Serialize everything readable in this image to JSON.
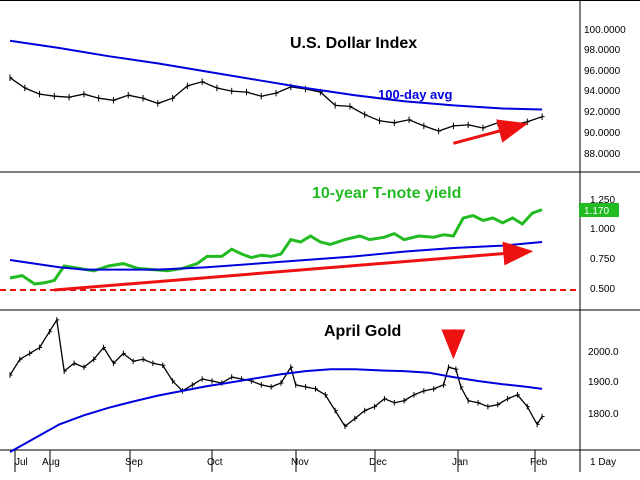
{
  "colors": {
    "price": "#000000",
    "avg": "#0000dd",
    "trend": "#ee1111",
    "yield": "#22bb22",
    "grid": "#000000"
  },
  "x_axis": {
    "months": [
      "Jul",
      "Aug",
      "Sep",
      "Oct",
      "Nov",
      "Dec",
      "Jan",
      "Feb"
    ],
    "period_label": "1 Day"
  },
  "chart_data": [
    {
      "type": "line",
      "title": "U.S. Dollar Index",
      "avg_label": "100-day avg",
      "y_ticks": [
        "100.0000",
        "98.0000",
        "96.0000",
        "94.0000",
        "92.0000",
        "90.0000",
        "88.0000"
      ],
      "ylim": [
        86.0,
        101.8
      ],
      "x_range": [
        0,
        218
      ],
      "series": [
        {
          "style": "ohlc",
          "points": [
            [
              0,
              95.0
            ],
            [
              6,
              94.0
            ],
            [
              12,
              93.4
            ],
            [
              18,
              93.2
            ],
            [
              24,
              93.1
            ],
            [
              30,
              93.4
            ],
            [
              36,
              93.0
            ],
            [
              42,
              92.8
            ],
            [
              48,
              93.3
            ],
            [
              54,
              93.0
            ],
            [
              60,
              92.5
            ],
            [
              66,
              93.0
            ],
            [
              72,
              94.2
            ],
            [
              78,
              94.6
            ],
            [
              84,
              94.0
            ],
            [
              90,
              93.7
            ],
            [
              96,
              93.6
            ],
            [
              102,
              93.2
            ],
            [
              108,
              93.5
            ],
            [
              114,
              94.1
            ],
            [
              120,
              93.9
            ],
            [
              126,
              93.6
            ],
            [
              132,
              92.3
            ],
            [
              138,
              92.2
            ],
            [
              144,
              91.4
            ],
            [
              150,
              90.8
            ],
            [
              156,
              90.6
            ],
            [
              162,
              90.9
            ],
            [
              168,
              90.3
            ],
            [
              174,
              89.8
            ],
            [
              180,
              90.3
            ],
            [
              186,
              90.4
            ],
            [
              192,
              90.1
            ],
            [
              198,
              90.6
            ],
            [
              204,
              90.4
            ],
            [
              210,
              90.7
            ],
            [
              216,
              91.2
            ]
          ]
        },
        {
          "name": "100-day avg",
          "points": [
            [
              0,
              98.6
            ],
            [
              20,
              97.9
            ],
            [
              40,
              97.1
            ],
            [
              60,
              96.4
            ],
            [
              80,
              95.6
            ],
            [
              100,
              94.8
            ],
            [
              120,
              94.0
            ],
            [
              140,
              93.3
            ],
            [
              160,
              92.7
            ],
            [
              180,
              92.3
            ],
            [
              200,
              92.0
            ],
            [
              216,
              91.9
            ]
          ]
        }
      ],
      "trendline": [
        [
          180,
          88.6
        ],
        [
          208,
          90.4
        ]
      ]
    },
    {
      "type": "line",
      "title": "10-year T-note yield",
      "y_ticks": [
        "1.250",
        "1.000",
        "0.750",
        "0.500"
      ],
      "ylim": [
        0.35,
        1.45
      ],
      "x_range": [
        0,
        218
      ],
      "current_value": "1.170",
      "series": [
        {
          "name": "10-year T-note yield",
          "points": [
            [
              0,
              0.6
            ],
            [
              5,
              0.62
            ],
            [
              10,
              0.55
            ],
            [
              14,
              0.56
            ],
            [
              18,
              0.58
            ],
            [
              22,
              0.7
            ],
            [
              28,
              0.68
            ],
            [
              34,
              0.66
            ],
            [
              40,
              0.7
            ],
            [
              46,
              0.72
            ],
            [
              52,
              0.68
            ],
            [
              58,
              0.67
            ],
            [
              64,
              0.66
            ],
            [
              70,
              0.68
            ],
            [
              76,
              0.72
            ],
            [
              80,
              0.78
            ],
            [
              86,
              0.78
            ],
            [
              90,
              0.84
            ],
            [
              94,
              0.8
            ],
            [
              98,
              0.77
            ],
            [
              102,
              0.79
            ],
            [
              106,
              0.78
            ],
            [
              110,
              0.8
            ],
            [
              114,
              0.92
            ],
            [
              118,
              0.9
            ],
            [
              122,
              0.95
            ],
            [
              126,
              0.9
            ],
            [
              130,
              0.88
            ],
            [
              136,
              0.92
            ],
            [
              142,
              0.95
            ],
            [
              146,
              0.92
            ],
            [
              152,
              0.94
            ],
            [
              156,
              0.97
            ],
            [
              160,
              0.92
            ],
            [
              166,
              0.95
            ],
            [
              172,
              0.94
            ],
            [
              176,
              0.96
            ],
            [
              180,
              0.95
            ],
            [
              184,
              1.1
            ],
            [
              188,
              1.12
            ],
            [
              192,
              1.08
            ],
            [
              196,
              1.1
            ],
            [
              200,
              1.06
            ],
            [
              204,
              1.1
            ],
            [
              208,
              1.05
            ],
            [
              212,
              1.14
            ],
            [
              216,
              1.17
            ]
          ]
        },
        {
          "name": "average",
          "points": [
            [
              0,
              0.75
            ],
            [
              10,
              0.72
            ],
            [
              20,
              0.69
            ],
            [
              30,
              0.67
            ],
            [
              40,
              0.67
            ],
            [
              60,
              0.67
            ],
            [
              80,
              0.69
            ],
            [
              100,
              0.72
            ],
            [
              120,
              0.75
            ],
            [
              140,
              0.78
            ],
            [
              160,
              0.82
            ],
            [
              180,
              0.85
            ],
            [
              200,
              0.87
            ],
            [
              216,
              0.9
            ]
          ]
        }
      ],
      "trendline": [
        [
          18,
          0.5
        ],
        [
          210,
          0.82
        ]
      ],
      "reference_line": 0.5
    },
    {
      "type": "line",
      "title": "April Gold",
      "y_ticks": [
        "2000.0",
        "1900.0",
        "1800.0"
      ],
      "ylim": [
        1730,
        2080
      ],
      "x_range": [
        0,
        218
      ],
      "series": [
        {
          "style": "ohlc",
          "points": [
            [
              0,
              1920
            ],
            [
              4,
              1960
            ],
            [
              8,
              1975
            ],
            [
              12,
              1990
            ],
            [
              16,
              2030
            ],
            [
              19,
              2060
            ],
            [
              22,
              1930
            ],
            [
              26,
              1950
            ],
            [
              30,
              1940
            ],
            [
              34,
              1960
            ],
            [
              38,
              1990
            ],
            [
              42,
              1950
            ],
            [
              46,
              1975
            ],
            [
              50,
              1955
            ],
            [
              54,
              1960
            ],
            [
              58,
              1950
            ],
            [
              62,
              1945
            ],
            [
              66,
              1905
            ],
            [
              70,
              1880
            ],
            [
              74,
              1895
            ],
            [
              78,
              1910
            ],
            [
              82,
              1905
            ],
            [
              86,
              1900
            ],
            [
              90,
              1915
            ],
            [
              94,
              1910
            ],
            [
              98,
              1905
            ],
            [
              102,
              1895
            ],
            [
              106,
              1890
            ],
            [
              110,
              1900
            ],
            [
              114,
              1940
            ],
            [
              116,
              1895
            ],
            [
              120,
              1890
            ],
            [
              124,
              1885
            ],
            [
              128,
              1870
            ],
            [
              132,
              1830
            ],
            [
              136,
              1790
            ],
            [
              140,
              1810
            ],
            [
              144,
              1830
            ],
            [
              148,
              1840
            ],
            [
              152,
              1860
            ],
            [
              156,
              1850
            ],
            [
              160,
              1855
            ],
            [
              164,
              1870
            ],
            [
              168,
              1880
            ],
            [
              172,
              1885
            ],
            [
              176,
              1895
            ],
            [
              178,
              1940
            ],
            [
              181,
              1935
            ],
            [
              183,
              1890
            ],
            [
              186,
              1855
            ],
            [
              190,
              1850
            ],
            [
              194,
              1840
            ],
            [
              198,
              1845
            ],
            [
              202,
              1860
            ],
            [
              206,
              1870
            ],
            [
              210,
              1840
            ],
            [
              214,
              1795
            ],
            [
              216,
              1815
            ]
          ]
        },
        {
          "name": "average",
          "points": [
            [
              0,
              1725
            ],
            [
              10,
              1760
            ],
            [
              20,
              1795
            ],
            [
              30,
              1818
            ],
            [
              40,
              1837
            ],
            [
              50,
              1853
            ],
            [
              60,
              1868
            ],
            [
              70,
              1880
            ],
            [
              80,
              1892
            ],
            [
              90,
              1902
            ],
            [
              100,
              1912
            ],
            [
              110,
              1922
            ],
            [
              120,
              1930
            ],
            [
              130,
              1935
            ],
            [
              140,
              1935
            ],
            [
              150,
              1932
            ],
            [
              160,
              1930
            ],
            [
              170,
              1926
            ],
            [
              180,
              1915
            ],
            [
              190,
              1905
            ],
            [
              200,
              1897
            ],
            [
              210,
              1890
            ],
            [
              216,
              1885
            ]
          ]
        }
      ],
      "marker_arrow": [
        180,
        1965
      ]
    }
  ]
}
